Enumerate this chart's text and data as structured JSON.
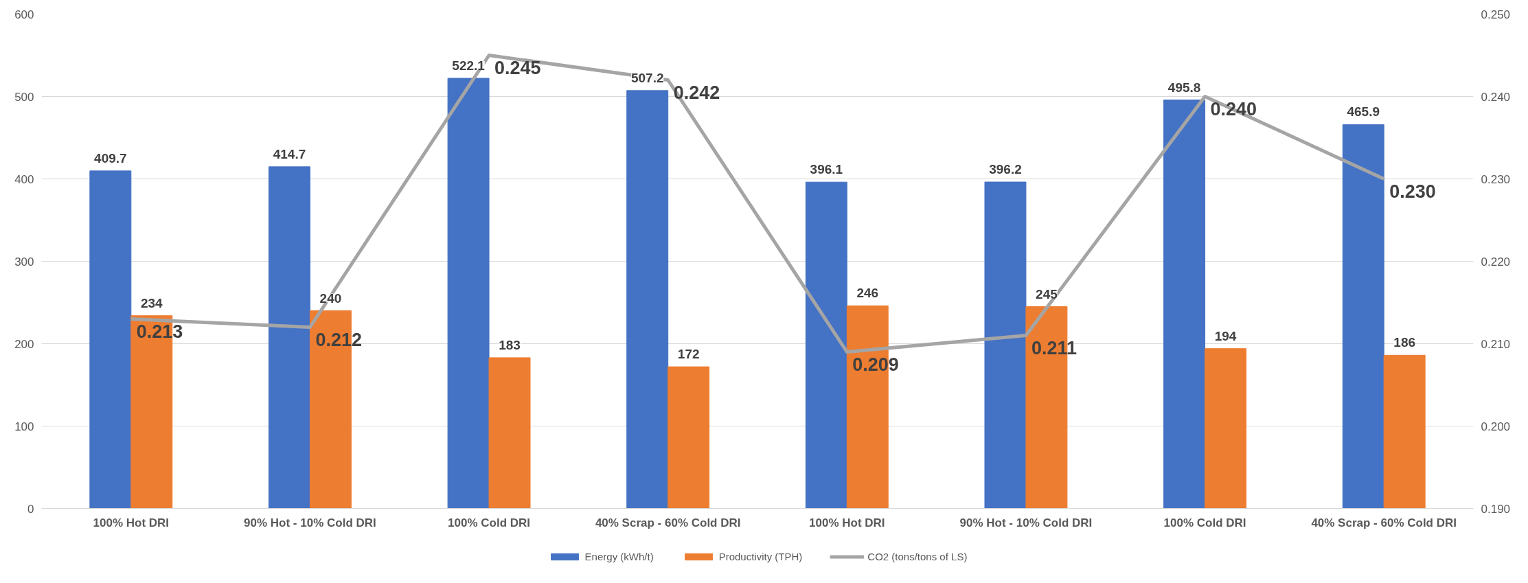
{
  "chart_data": {
    "type": "bar",
    "categories": [
      "100% Hot DRI",
      "90% Hot - 10% Cold DRI",
      "100% Cold DRI",
      "40% Scrap - 60% Cold DRI",
      "100% Hot DRI",
      "90% Hot - 10% Cold DRI",
      "100% Cold DRI",
      "40% Scrap - 60% Cold DRI"
    ],
    "series": [
      {
        "name": "Energy (kWh/t)",
        "color": "#4472c4",
        "values": [
          409.7,
          414.7,
          522.1,
          507.2,
          396.1,
          396.2,
          495.8,
          465.9
        ]
      },
      {
        "name": "Productivity (TPH)",
        "color": "#ed7d31",
        "values": [
          234,
          240,
          183,
          172,
          246,
          245,
          194,
          186
        ]
      },
      {
        "name": "CO2 (tons/tons of LS)",
        "color": "#a5a5a5",
        "type": "line",
        "axis": "y2",
        "value_labels": [
          "0.213",
          "0.212",
          "0.245",
          "0.242",
          "0.209",
          "0.211",
          "0.240",
          "0.230"
        ],
        "values": [
          0.213,
          0.212,
          0.245,
          0.242,
          0.209,
          0.211,
          0.24,
          0.23
        ]
      }
    ],
    "ylim": [
      0,
      600
    ],
    "yticks": [
      0,
      100,
      200,
      300,
      400,
      500,
      600
    ],
    "y2lim": [
      0.19,
      0.25
    ],
    "y2ticks": [
      {
        "value": 0.19,
        "label": "0.190"
      },
      {
        "value": 0.2,
        "label": "0.200"
      },
      {
        "value": 0.21,
        "label": "0.210"
      },
      {
        "value": 0.22,
        "label": "0.220"
      },
      {
        "value": 0.23,
        "label": "0.230"
      },
      {
        "value": 0.24,
        "label": "0.240"
      },
      {
        "value": 0.25,
        "label": "0.250"
      }
    ],
    "data_labels": true,
    "grid": "y",
    "legend": "bottom",
    "marker": "none",
    "line_style": "solid"
  }
}
